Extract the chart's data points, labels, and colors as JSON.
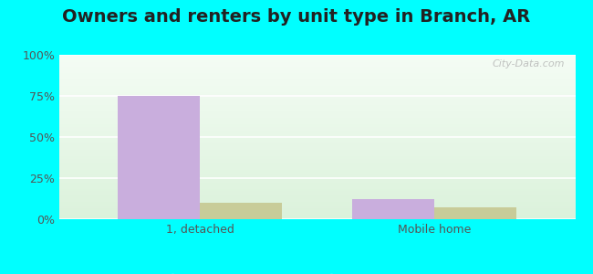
{
  "title": "Owners and renters by unit type in Branch, AR",
  "categories": [
    "1, detached",
    "Mobile home"
  ],
  "owner_values": [
    75,
    12
  ],
  "renter_values": [
    10,
    7
  ],
  "owner_color": "#c9aedd",
  "renter_color": "#c8cc99",
  "ylim": [
    0,
    100
  ],
  "yticks": [
    0,
    25,
    50,
    75,
    100
  ],
  "ytick_labels": [
    "0%",
    "25%",
    "50%",
    "75%",
    "100%"
  ],
  "outer_bg_color": "#00ffff",
  "bar_width": 0.35,
  "title_fontsize": 14,
  "tick_fontsize": 9,
  "legend_fontsize": 9,
  "watermark": "City-Data.com",
  "gradient_top": "#f5fbf5",
  "gradient_bottom": "#d0ead0"
}
